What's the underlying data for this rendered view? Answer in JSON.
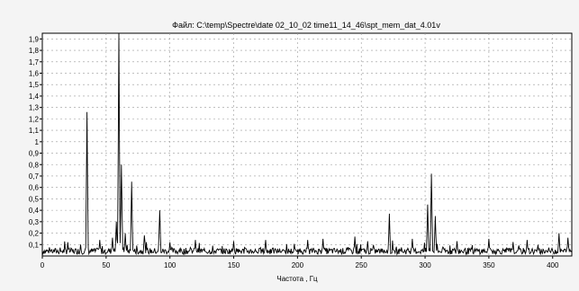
{
  "chart_data": {
    "type": "line",
    "title": "Файл: C:\\temp\\Spectre\\date 02_10_02 time11_14_46\\spt_mem_dat_4.01v",
    "xlabel": "Частота , Гц",
    "ylabel": "",
    "xlim": [
      0,
      415
    ],
    "ylim": [
      0,
      1.95
    ],
    "xticks": [
      "0",
      "50",
      "100",
      "150",
      "200",
      "250",
      "300",
      "350",
      "400"
    ],
    "xtick_values": [
      0,
      50,
      100,
      150,
      200,
      250,
      300,
      350,
      400
    ],
    "yticks": [
      "0,1",
      "0,2",
      "0,3",
      "0,4",
      "0,5",
      "0,6",
      "0,7",
      "0,8",
      "0,9",
      "1",
      "1,1",
      "1,2",
      "1,3",
      "1,4",
      "1,5",
      "1,6",
      "1,7",
      "1,8",
      "1,9"
    ],
    "ytick_values": [
      0.1,
      0.2,
      0.3,
      0.4,
      0.5,
      0.6,
      0.7,
      0.8,
      0.9,
      1.0,
      1.1,
      1.2,
      1.3,
      1.4,
      1.5,
      1.6,
      1.7,
      1.8,
      1.9
    ],
    "grid": true,
    "baseline": 0.05,
    "peaks": [
      {
        "x": 20,
        "y": 0.12
      },
      {
        "x": 30,
        "y": 0.1
      },
      {
        "x": 35,
        "y": 1.26
      },
      {
        "x": 45,
        "y": 0.14
      },
      {
        "x": 55,
        "y": 0.16
      },
      {
        "x": 58,
        "y": 0.3
      },
      {
        "x": 60,
        "y": 1.95
      },
      {
        "x": 62,
        "y": 0.8
      },
      {
        "x": 65,
        "y": 0.2
      },
      {
        "x": 70,
        "y": 0.65
      },
      {
        "x": 80,
        "y": 0.18
      },
      {
        "x": 92,
        "y": 0.4
      },
      {
        "x": 100,
        "y": 0.12
      },
      {
        "x": 120,
        "y": 0.14
      },
      {
        "x": 150,
        "y": 0.13
      },
      {
        "x": 175,
        "y": 0.14
      },
      {
        "x": 208,
        "y": 0.14
      },
      {
        "x": 220,
        "y": 0.15
      },
      {
        "x": 245,
        "y": 0.17
      },
      {
        "x": 255,
        "y": 0.13
      },
      {
        "x": 272,
        "y": 0.37
      },
      {
        "x": 290,
        "y": 0.15
      },
      {
        "x": 302,
        "y": 0.45
      },
      {
        "x": 305,
        "y": 0.72
      },
      {
        "x": 308,
        "y": 0.35
      },
      {
        "x": 325,
        "y": 0.13
      },
      {
        "x": 350,
        "y": 0.15
      },
      {
        "x": 380,
        "y": 0.14
      },
      {
        "x": 405,
        "y": 0.2
      },
      {
        "x": 412,
        "y": 0.16
      }
    ]
  }
}
